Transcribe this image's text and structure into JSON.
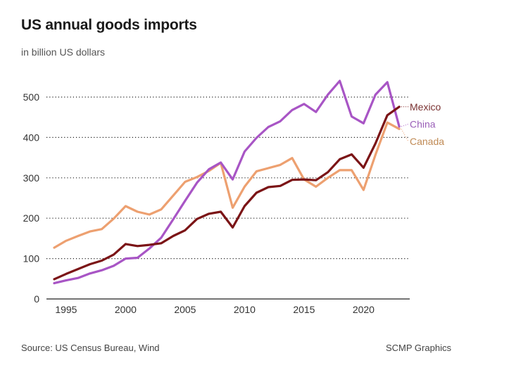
{
  "header": {
    "title": "US annual goods imports",
    "subtitle": "in billion US dollars"
  },
  "footer": {
    "source": "Source: US Census Bureau, Wind",
    "credit": "SCMP Graphics"
  },
  "chart_data": {
    "type": "line",
    "title": "US annual goods imports",
    "subtitle": "in billion US dollars",
    "xlabel": "",
    "ylabel": "",
    "x": [
      1994,
      1995,
      1996,
      1997,
      1998,
      1999,
      2000,
      2001,
      2002,
      2003,
      2004,
      2005,
      2006,
      2007,
      2008,
      2009,
      2010,
      2011,
      2012,
      2013,
      2014,
      2015,
      2016,
      2017,
      2018,
      2019,
      2020,
      2021,
      2022,
      2023
    ],
    "xlim": [
      1992.5,
      2024
    ],
    "ylim": [
      0,
      500
    ],
    "xticks": [
      1995,
      2000,
      2005,
      2010,
      2015,
      2020
    ],
    "xtick_labels": [
      "1995",
      "2000",
      "2005",
      "2010",
      "2015",
      "2020"
    ],
    "yticks": [
      0,
      100,
      200,
      300,
      400,
      500
    ],
    "ytick_labels": [
      "0",
      "100",
      "200",
      "300",
      "400",
      "500"
    ],
    "grid": "horizontal-dotted",
    "legend": "inline-right-end",
    "series": [
      {
        "name": "Canada",
        "color": "#eda070",
        "label_color": "#c08a55",
        "values": [
          127,
          144,
          156,
          167,
          173,
          199,
          230,
          216,
          209,
          222,
          256,
          290,
          302,
          317,
          337,
          226,
          278,
          316,
          324,
          332,
          349,
          296,
          278,
          300,
          319,
          319,
          270,
          357,
          437,
          421
        ]
      },
      {
        "name": "China",
        "color": "#a855c5",
        "label_color": "#9a5fb8",
        "values": [
          39,
          46,
          52,
          63,
          71,
          82,
          100,
          102,
          125,
          152,
          197,
          243,
          288,
          321,
          338,
          296,
          365,
          399,
          426,
          440,
          468,
          483,
          463,
          506,
          540,
          452,
          435,
          506,
          537,
          427
        ]
      },
      {
        "name": "Mexico",
        "color": "#7b1416",
        "label_color": "#7a3232",
        "values": [
          49,
          62,
          74,
          86,
          95,
          110,
          136,
          131,
          134,
          138,
          156,
          170,
          198,
          211,
          216,
          177,
          230,
          263,
          277,
          280,
          295,
          296,
          294,
          314,
          346,
          358,
          325,
          385,
          455,
          476
        ]
      }
    ],
    "labels": [
      {
        "series": "Mexico",
        "text": "Mexico",
        "anchor_value": 476,
        "label_value": 476
      },
      {
        "series": "China",
        "text": "China",
        "anchor_value": 427,
        "label_value": 433
      },
      {
        "series": "Canada",
        "text": "Canada",
        "anchor_value": 421,
        "label_value": 390
      }
    ]
  }
}
